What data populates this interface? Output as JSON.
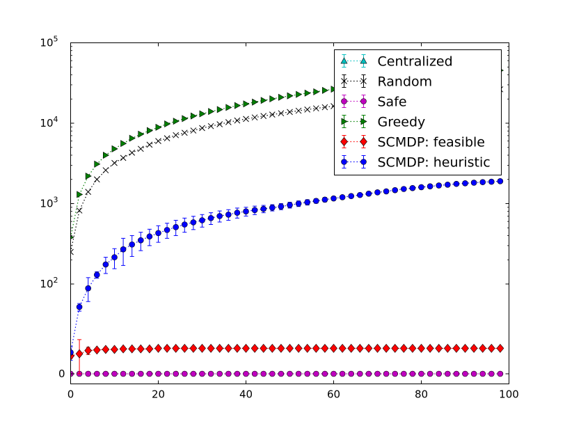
{
  "chart_data": {
    "type": "scatter",
    "title": "",
    "xlabel": "",
    "ylabel": "",
    "xlim": [
      0,
      100
    ],
    "x_ticks": [
      0,
      20,
      40,
      60,
      80,
      100
    ],
    "y_scale": "symlog",
    "y_ticks": [
      {
        "value": 0,
        "base": "0",
        "exp": ""
      },
      {
        "value": 100,
        "base": "10",
        "exp": "2"
      },
      {
        "value": 1000,
        "base": "10",
        "exp": "3"
      },
      {
        "value": 10000,
        "base": "10",
        "exp": "4"
      },
      {
        "value": 100000,
        "base": "10",
        "exp": "5"
      }
    ],
    "legend_position": "top-right",
    "series": [
      {
        "name": "Centralized",
        "color": "#00bfbf",
        "marker": "triangle-up",
        "x": [],
        "y": [],
        "err": []
      },
      {
        "name": "Random",
        "color": "#000000",
        "marker": "x",
        "x": [
          0,
          2,
          4,
          6,
          8,
          10,
          12,
          14,
          16,
          18,
          20,
          22,
          24,
          26,
          28,
          30,
          32,
          34,
          36,
          38,
          40,
          42,
          44,
          46,
          48,
          50,
          52,
          54,
          56,
          58,
          60,
          62,
          64,
          66,
          68,
          70,
          72,
          74,
          76,
          78,
          80,
          82,
          84,
          86,
          88,
          90,
          92,
          94,
          96,
          98
        ],
        "y": [
          250,
          820,
          1400,
          2000,
          2600,
          3200,
          3700,
          4300,
          4800,
          5400,
          6000,
          6500,
          7100,
          7600,
          8100,
          8700,
          9200,
          9700,
          10300,
          10800,
          11300,
          11800,
          12300,
          12800,
          13300,
          13800,
          14300,
          14800,
          15300,
          15800,
          16300,
          16800,
          17300,
          17800,
          18300,
          18800,
          19300,
          19800,
          20300,
          20800,
          21400,
          21900,
          22500,
          23000,
          23600,
          24100,
          24700,
          25300,
          25800,
          26400
        ],
        "err": []
      },
      {
        "name": "Safe",
        "color": "#bf00bf",
        "marker": "circle",
        "x": [
          0,
          2,
          4,
          6,
          8,
          10,
          12,
          14,
          16,
          18,
          20,
          22,
          24,
          26,
          28,
          30,
          32,
          34,
          36,
          38,
          40,
          42,
          44,
          46,
          48,
          50,
          52,
          54,
          56,
          58,
          60,
          62,
          64,
          66,
          68,
          70,
          72,
          74,
          76,
          78,
          80,
          82,
          84,
          86,
          88,
          90,
          92,
          94,
          96,
          98
        ],
        "y": [
          0,
          0,
          0,
          0,
          0,
          0,
          0,
          0,
          0,
          0,
          0,
          0,
          0,
          0,
          0,
          0,
          0,
          0,
          0,
          0,
          0,
          0,
          0,
          0,
          0,
          0,
          0,
          0,
          0,
          0,
          0,
          0,
          0,
          0,
          0,
          0,
          0,
          0,
          0,
          0,
          0,
          0,
          0,
          0,
          0,
          0,
          0,
          0,
          0,
          0
        ],
        "err": []
      },
      {
        "name": "Greedy",
        "color": "#007f00",
        "marker": "triangle-right",
        "x": [
          0,
          2,
          4,
          6,
          8,
          10,
          12,
          14,
          16,
          18,
          20,
          22,
          24,
          26,
          28,
          30,
          32,
          34,
          36,
          38,
          40,
          42,
          44,
          46,
          48,
          50,
          52,
          54,
          56,
          58,
          60,
          62,
          64,
          66,
          68,
          70,
          72,
          74,
          76,
          78,
          80,
          82,
          84,
          86,
          88,
          90,
          92,
          94,
          96,
          98
        ],
        "y": [
          380,
          1300,
          2200,
          3100,
          4000,
          4800,
          5600,
          6500,
          7300,
          8100,
          8900,
          9800,
          10600,
          11400,
          12300,
          13100,
          14000,
          14800,
          15700,
          16600,
          17400,
          18300,
          19200,
          20100,
          21000,
          21900,
          22800,
          23700,
          24600,
          25600,
          26500,
          27400,
          28400,
          29300,
          30300,
          31200,
          32200,
          33200,
          34100,
          35100,
          36100,
          37100,
          38100,
          39200,
          40200,
          41200,
          42200,
          43300,
          44300,
          45400
        ],
        "err": []
      },
      {
        "name": "SCMDP: feasible",
        "color": "#ff0000",
        "marker": "diamond",
        "x": [
          0,
          2,
          4,
          6,
          8,
          10,
          12,
          14,
          16,
          18,
          20,
          22,
          24,
          26,
          28,
          30,
          32,
          34,
          36,
          38,
          40,
          42,
          44,
          46,
          48,
          50,
          52,
          54,
          56,
          58,
          60,
          62,
          64,
          66,
          68,
          70,
          72,
          74,
          76,
          78,
          80,
          82,
          84,
          86,
          88,
          90,
          92,
          94,
          96,
          98
        ],
        "y": [
          1.5,
          1.8,
          2.3,
          2.4,
          2.5,
          2.5,
          2.6,
          2.6,
          2.6,
          2.6,
          2.7,
          2.7,
          2.7,
          2.7,
          2.7,
          2.7,
          2.7,
          2.7,
          2.7,
          2.7,
          2.7,
          2.7,
          2.7,
          2.7,
          2.7,
          2.7,
          2.7,
          2.7,
          2.7,
          2.7,
          2.7,
          2.7,
          2.7,
          2.7,
          2.7,
          2.7,
          2.7,
          2.7,
          2.7,
          2.7,
          2.7,
          2.7,
          2.7,
          2.7,
          2.7,
          2.7,
          2.7,
          2.7,
          2.7,
          2.7
        ],
        "err": [
          0.3,
          3.0,
          0.6,
          0.3,
          0.3,
          0.2,
          0.2,
          0.2,
          0.2,
          0.2,
          0.2,
          0.2,
          0.2,
          0.2,
          0.2,
          0.2,
          0.2,
          0.2,
          0.2,
          0.2,
          0.2,
          0.2,
          0.2,
          0.2,
          0.2,
          0.2,
          0.2,
          0.2,
          0.2,
          0.2,
          0.2,
          0.2,
          0.2,
          0.2,
          0.2,
          0.2,
          0.2,
          0.2,
          0.2,
          0.2,
          0.2,
          0.2,
          0.2,
          0.2,
          0.2,
          0.2,
          0.2,
          0.2,
          0.2,
          0.2
        ]
      },
      {
        "name": "SCMDP: heuristic",
        "color": "#0000ff",
        "marker": "circle",
        "x": [
          0,
          2,
          4,
          6,
          8,
          10,
          12,
          14,
          16,
          18,
          20,
          22,
          24,
          26,
          28,
          30,
          32,
          34,
          36,
          38,
          40,
          42,
          44,
          46,
          48,
          50,
          52,
          54,
          56,
          58,
          60,
          62,
          64,
          66,
          68,
          70,
          72,
          74,
          76,
          78,
          80,
          82,
          84,
          86,
          88,
          90,
          92,
          94,
          96,
          98
        ],
        "y": [
          2,
          30,
          80,
          130,
          175,
          215,
          270,
          310,
          350,
          390,
          430,
          470,
          510,
          550,
          585,
          620,
          660,
          700,
          730,
          770,
          800,
          830,
          860,
          890,
          920,
          960,
          1000,
          1040,
          1080,
          1120,
          1160,
          1200,
          1240,
          1280,
          1330,
          1380,
          1420,
          1470,
          1520,
          1560,
          1600,
          1640,
          1680,
          1720,
          1760,
          1790,
          1820,
          1850,
          1870,
          1900
        ],
        "err": [
          1,
          6,
          40,
          12,
          40,
          60,
          100,
          90,
          90,
          90,
          100,
          100,
          110,
          110,
          110,
          110,
          110,
          110,
          110,
          110,
          100,
          100,
          90,
          80,
          80,
          80,
          80,
          80,
          70,
          70,
          60,
          60,
          60,
          60,
          60,
          60,
          60,
          60,
          60,
          60,
          60,
          60,
          60,
          60,
          60,
          60,
          60,
          60,
          60,
          60
        ]
      }
    ]
  }
}
